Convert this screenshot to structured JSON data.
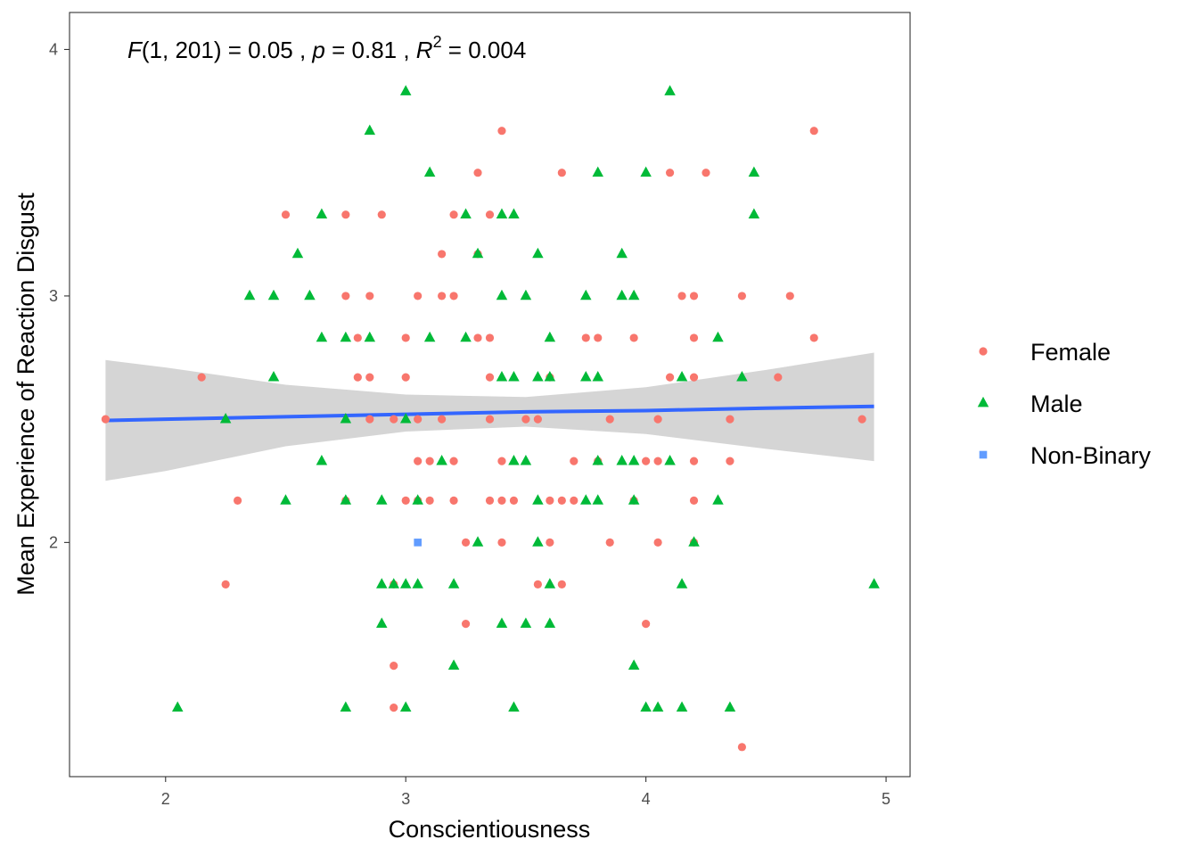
{
  "chart_data": {
    "type": "scatter",
    "xlabel": "Conscientiousness",
    "ylabel": "Mean Experience of Reaction Disgust",
    "xlim": [
      1.6,
      5.1
    ],
    "ylim": [
      1.05,
      4.15
    ],
    "xticks": [
      "2",
      "3",
      "4",
      "5"
    ],
    "yticks": [
      "2",
      "3",
      "4"
    ],
    "grid": false,
    "legend_position": "right",
    "annotation": {
      "f": "F",
      "df": "(1, 201)",
      "f_value": " = 0.05 , ",
      "p": "p",
      "p_value": " = 0.81 , ",
      "r": "R",
      "r_sup": "2",
      "r_value": " = 0.004"
    },
    "regression": {
      "color": "#3366ff",
      "band_color": "#d3d3d3",
      "x": [
        1.75,
        2.0,
        2.5,
        3.0,
        3.5,
        4.0,
        4.5,
        4.95
      ],
      "fit": [
        2.495,
        2.5,
        2.51,
        2.52,
        2.53,
        2.535,
        2.545,
        2.552
      ],
      "lower": [
        2.25,
        2.29,
        2.39,
        2.45,
        2.47,
        2.44,
        2.38,
        2.33
      ],
      "upper": [
        2.74,
        2.71,
        2.64,
        2.6,
        2.59,
        2.63,
        2.7,
        2.77
      ]
    },
    "series": [
      {
        "name": "Female",
        "marker": "circle",
        "color": "#f8766d",
        "points": [
          [
            1.75,
            2.5
          ],
          [
            2.15,
            2.67
          ],
          [
            2.25,
            1.83
          ],
          [
            2.3,
            2.17
          ],
          [
            2.5,
            3.33
          ],
          [
            2.75,
            3.33
          ],
          [
            2.75,
            3.0
          ],
          [
            2.75,
            2.17
          ],
          [
            2.8,
            2.83
          ],
          [
            2.8,
            2.67
          ],
          [
            2.85,
            3.0
          ],
          [
            2.85,
            2.67
          ],
          [
            2.85,
            2.5
          ],
          [
            2.9,
            3.33
          ],
          [
            2.95,
            2.5
          ],
          [
            2.95,
            1.83
          ],
          [
            2.95,
            1.5
          ],
          [
            2.95,
            1.33
          ],
          [
            3.0,
            2.83
          ],
          [
            3.0,
            2.67
          ],
          [
            3.0,
            2.17
          ],
          [
            3.05,
            3.0
          ],
          [
            3.05,
            2.5
          ],
          [
            3.05,
            2.33
          ],
          [
            3.05,
            2.17
          ],
          [
            3.1,
            2.33
          ],
          [
            3.1,
            2.17
          ],
          [
            3.15,
            3.17
          ],
          [
            3.15,
            3.0
          ],
          [
            3.15,
            2.5
          ],
          [
            3.2,
            3.33
          ],
          [
            3.2,
            3.0
          ],
          [
            3.2,
            2.33
          ],
          [
            3.2,
            2.17
          ],
          [
            3.25,
            2.0
          ],
          [
            3.25,
            1.67
          ],
          [
            3.3,
            3.5
          ],
          [
            3.3,
            3.17
          ],
          [
            3.3,
            2.83
          ],
          [
            3.35,
            3.33
          ],
          [
            3.35,
            2.83
          ],
          [
            3.35,
            2.67
          ],
          [
            3.35,
            2.5
          ],
          [
            3.35,
            2.17
          ],
          [
            3.4,
            3.67
          ],
          [
            3.4,
            2.33
          ],
          [
            3.4,
            2.17
          ],
          [
            3.4,
            2.0
          ],
          [
            3.45,
            2.17
          ],
          [
            3.5,
            2.5
          ],
          [
            3.55,
            2.5
          ],
          [
            3.55,
            1.83
          ],
          [
            3.6,
            2.17
          ],
          [
            3.6,
            2.0
          ],
          [
            3.6,
            2.67
          ],
          [
            3.65,
            3.5
          ],
          [
            3.65,
            2.17
          ],
          [
            3.65,
            1.83
          ],
          [
            3.7,
            2.33
          ],
          [
            3.7,
            2.17
          ],
          [
            3.75,
            2.83
          ],
          [
            3.8,
            2.83
          ],
          [
            3.8,
            2.33
          ],
          [
            3.85,
            2.5
          ],
          [
            3.85,
            2.0
          ],
          [
            3.95,
            2.83
          ],
          [
            3.95,
            2.17
          ],
          [
            4.0,
            2.33
          ],
          [
            4.0,
            1.67
          ],
          [
            4.05,
            2.33
          ],
          [
            4.05,
            2.5
          ],
          [
            4.05,
            2.0
          ],
          [
            4.1,
            3.5
          ],
          [
            4.1,
            2.67
          ],
          [
            4.15,
            3.0
          ],
          [
            4.2,
            3.0
          ],
          [
            4.2,
            2.83
          ],
          [
            4.2,
            2.67
          ],
          [
            4.2,
            2.33
          ],
          [
            4.2,
            2.17
          ],
          [
            4.2,
            2.0
          ],
          [
            4.25,
            3.5
          ],
          [
            4.35,
            2.5
          ],
          [
            4.35,
            2.33
          ],
          [
            4.4,
            3.0
          ],
          [
            4.4,
            1.17
          ],
          [
            4.55,
            2.67
          ],
          [
            4.6,
            3.0
          ],
          [
            4.7,
            3.67
          ],
          [
            4.7,
            2.83
          ],
          [
            4.9,
            2.5
          ]
        ]
      },
      {
        "name": "Male",
        "marker": "triangle",
        "color": "#00ba38",
        "points": [
          [
            2.05,
            1.33
          ],
          [
            2.25,
            2.5
          ],
          [
            2.35,
            3.0
          ],
          [
            2.45,
            3.0
          ],
          [
            2.45,
            2.67
          ],
          [
            2.5,
            2.17
          ],
          [
            2.55,
            3.17
          ],
          [
            2.6,
            3.0
          ],
          [
            2.65,
            3.33
          ],
          [
            2.65,
            2.83
          ],
          [
            2.65,
            2.33
          ],
          [
            2.75,
            2.83
          ],
          [
            2.75,
            2.5
          ],
          [
            2.75,
            2.17
          ],
          [
            2.75,
            1.33
          ],
          [
            2.85,
            3.67
          ],
          [
            2.85,
            2.83
          ],
          [
            2.9,
            2.17
          ],
          [
            2.9,
            1.83
          ],
          [
            2.9,
            1.67
          ],
          [
            2.95,
            1.83
          ],
          [
            3.0,
            3.83
          ],
          [
            3.0,
            2.5
          ],
          [
            3.0,
            1.83
          ],
          [
            3.0,
            1.33
          ],
          [
            3.05,
            2.17
          ],
          [
            3.05,
            1.83
          ],
          [
            3.1,
            3.5
          ],
          [
            3.1,
            2.83
          ],
          [
            3.15,
            2.33
          ],
          [
            3.2,
            1.83
          ],
          [
            3.2,
            1.5
          ],
          [
            3.25,
            3.33
          ],
          [
            3.25,
            2.83
          ],
          [
            3.3,
            3.17
          ],
          [
            3.3,
            2.0
          ],
          [
            3.4,
            3.33
          ],
          [
            3.4,
            3.0
          ],
          [
            3.4,
            2.67
          ],
          [
            3.4,
            1.67
          ],
          [
            3.45,
            3.33
          ],
          [
            3.45,
            2.67
          ],
          [
            3.45,
            2.33
          ],
          [
            3.45,
            1.33
          ],
          [
            3.5,
            3.0
          ],
          [
            3.5,
            2.33
          ],
          [
            3.5,
            1.67
          ],
          [
            3.55,
            3.17
          ],
          [
            3.55,
            2.67
          ],
          [
            3.55,
            2.17
          ],
          [
            3.55,
            2.0
          ],
          [
            3.6,
            2.83
          ],
          [
            3.6,
            2.67
          ],
          [
            3.6,
            1.83
          ],
          [
            3.6,
            1.67
          ],
          [
            3.75,
            3.0
          ],
          [
            3.75,
            2.67
          ],
          [
            3.75,
            2.17
          ],
          [
            3.8,
            3.5
          ],
          [
            3.8,
            2.67
          ],
          [
            3.8,
            2.17
          ],
          [
            3.8,
            2.33
          ],
          [
            3.9,
            3.17
          ],
          [
            3.9,
            3.0
          ],
          [
            3.9,
            2.33
          ],
          [
            3.95,
            3.0
          ],
          [
            3.95,
            2.33
          ],
          [
            3.95,
            2.17
          ],
          [
            3.95,
            1.5
          ],
          [
            4.0,
            3.5
          ],
          [
            4.0,
            1.33
          ],
          [
            4.05,
            1.33
          ],
          [
            4.1,
            3.83
          ],
          [
            4.1,
            2.33
          ],
          [
            4.15,
            2.67
          ],
          [
            4.15,
            1.83
          ],
          [
            4.15,
            1.33
          ],
          [
            4.2,
            2.0
          ],
          [
            4.3,
            2.83
          ],
          [
            4.3,
            2.17
          ],
          [
            4.35,
            1.33
          ],
          [
            4.4,
            2.67
          ],
          [
            4.45,
            3.5
          ],
          [
            4.45,
            3.33
          ],
          [
            4.95,
            1.83
          ]
        ]
      },
      {
        "name": "Non-Binary",
        "marker": "square",
        "color": "#619cff",
        "points": [
          [
            3.05,
            2.0
          ]
        ]
      }
    ]
  }
}
